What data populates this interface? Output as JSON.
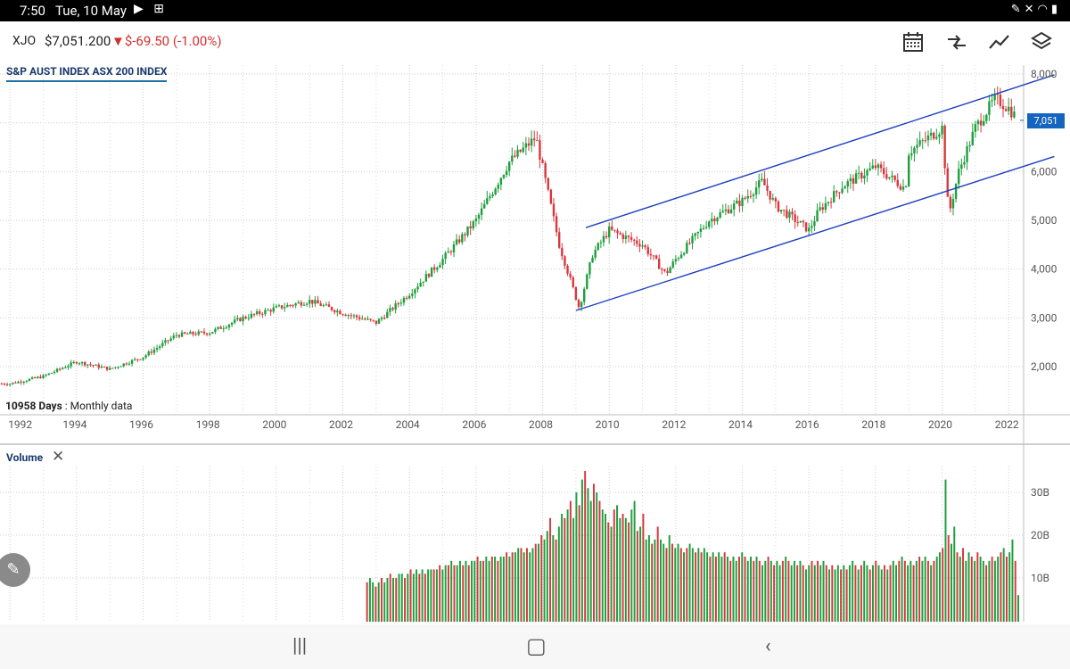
{
  "status_bar": {
    "time": "7:50",
    "date": "Tue, 10 May",
    "left_icons": [
      "play-icon",
      "grid-icon"
    ],
    "right_icons": [
      "pen-icon",
      "mute-icon",
      "wifi-icon",
      "battery-icon"
    ]
  },
  "header": {
    "ticker": "XJO",
    "price": "$7,051.200",
    "change": "$-69.50 (-1.00%)",
    "change_color": "#d32f2f",
    "toolbar_icons": [
      "calendar-icon",
      "compare-icon",
      "trend-line-icon",
      "layers-icon"
    ]
  },
  "chart": {
    "title": "S&P AUST INDEX ASX 200 INDEX",
    "range_label": "10958 Days",
    "range_suffix": ": Monthly data",
    "current_price_tag": "7,051",
    "price_ticks": [
      "8,000",
      "7,000",
      "6,000",
      "5,000",
      "4,000",
      "3,000",
      "2,000"
    ],
    "year_ticks": [
      "1992",
      "1994",
      "1996",
      "1998",
      "2000",
      "2002",
      "2004",
      "2006",
      "2008",
      "2010",
      "2012",
      "2014",
      "2016",
      "2018",
      "2020",
      "2022"
    ],
    "up_color": "#1e9e3c",
    "down_color": "#d9373d",
    "trend_color": "#1e3fbf"
  },
  "volume": {
    "title": "Volume",
    "close_label": "✕",
    "ticks": [
      "30B",
      "20B",
      "10B"
    ]
  },
  "chart_data": [
    {
      "type": "line",
      "title": "S&P AUST INDEX ASX 200 INDEX",
      "note": "Monthly candlestick price chart, approximated as closing values",
      "ylim": [
        1000,
        8200
      ],
      "x": [
        1992,
        1993,
        1994,
        1995,
        1996,
        1997,
        1998,
        1999,
        2000,
        2001,
        2002,
        2003,
        2004,
        2005,
        2006,
        2007,
        2007.8,
        2008.5,
        2009.1,
        2009.5,
        2010,
        2011,
        2011.7,
        2012,
        2013,
        2014,
        2014.6,
        2015,
        2016,
        2016.3,
        2017,
        2018,
        2018.9,
        2019,
        2020,
        2020.2,
        2020.5,
        2021,
        2021.6,
        2022,
        2022.3
      ],
      "y": [
        1650,
        1800,
        2100,
        1950,
        2200,
        2650,
        2700,
        3000,
        3200,
        3350,
        3100,
        2900,
        3500,
        4200,
        5000,
        6200,
        6700,
        4500,
        3200,
        4300,
        4800,
        4500,
        3900,
        4200,
        5000,
        5400,
        5800,
        5300,
        4800,
        5200,
        5700,
        6100,
        5650,
        6400,
        6900,
        5100,
        6000,
        6900,
        7500,
        7300,
        7051
      ],
      "trend_channel": [
        {
          "name": "upper",
          "x": [
            2009.3,
            2022.3
          ],
          "y": [
            4850,
            7800
          ]
        },
        {
          "name": "lower",
          "x": [
            2009.0,
            2022.3
          ],
          "y": [
            3150,
            6200
          ]
        }
      ]
    },
    {
      "type": "bar",
      "title": "Volume",
      "note": "Monthly volume in billions (approximate), visible from 2002.7",
      "ylim": [
        0,
        40
      ],
      "x_start": 2002.7,
      "x_end": 2022.35,
      "values": [
        9,
        10,
        9,
        8,
        9,
        10,
        9,
        10,
        11,
        10,
        10,
        11,
        11,
        10,
        11,
        12,
        11,
        12,
        11,
        12,
        11,
        12,
        12,
        12,
        12,
        13,
        12,
        13,
        13,
        14,
        13,
        13,
        14,
        13,
        14,
        13,
        14,
        14,
        15,
        14,
        14,
        15,
        14,
        15,
        15,
        14,
        15,
        15,
        16,
        15,
        16,
        16,
        17,
        17,
        16,
        17,
        16,
        17,
        18,
        18,
        20,
        19,
        21,
        24,
        20,
        19,
        22,
        25,
        24,
        26,
        28,
        24,
        30,
        27,
        33,
        35,
        31,
        28,
        32,
        30,
        28,
        26,
        25,
        23,
        22,
        26,
        27,
        24,
        25,
        24,
        23,
        26,
        28,
        21,
        22,
        25,
        19,
        20,
        18,
        19,
        22,
        19,
        18,
        17,
        20,
        18,
        17,
        18,
        17,
        16,
        17,
        18,
        17,
        16,
        17,
        16,
        17,
        16,
        15,
        16,
        15,
        16,
        15,
        16,
        15,
        14,
        15,
        14,
        15,
        16,
        15,
        14,
        15,
        14,
        15,
        14,
        13,
        14,
        15,
        14,
        13,
        14,
        13,
        14,
        15,
        14,
        13,
        14,
        13,
        14,
        13,
        12,
        13,
        14,
        13,
        14,
        13,
        14,
        13,
        12,
        13,
        12,
        13,
        12,
        13,
        12,
        13,
        14,
        13,
        12,
        13,
        14,
        13,
        12,
        13,
        14,
        13,
        12,
        13,
        12,
        13,
        14,
        13,
        14,
        15,
        14,
        13,
        14,
        13,
        14,
        15,
        14,
        15,
        14,
        13,
        14,
        15,
        16,
        17,
        33,
        20,
        18,
        22,
        16,
        15,
        17,
        14,
        16,
        15,
        14,
        16,
        15,
        14,
        13,
        14,
        15,
        14,
        15,
        16,
        17,
        15,
        16,
        19,
        14,
        6
      ],
      "up_color": "#1e9e3c",
      "down_color": "#d9373d"
    }
  ]
}
